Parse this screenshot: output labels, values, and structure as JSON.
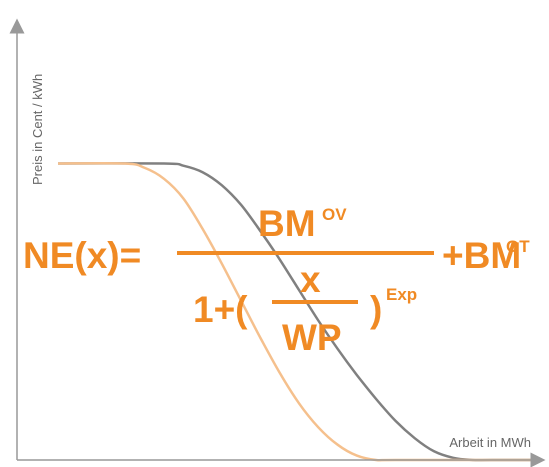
{
  "chart_data": {
    "type": "line",
    "xlabel": "Arbeit in MWh",
    "ylabel": "Preis in Cent / kWh",
    "xlim": [
      0,
      100
    ],
    "ylim": [
      0,
      100
    ],
    "grid": false,
    "series": [
      {
        "color": "#808080",
        "x": [
          0,
          22,
          26,
          30,
          34,
          38,
          42,
          46,
          50,
          54,
          58,
          62,
          66,
          70,
          74,
          78,
          82,
          86,
          90,
          100
        ],
        "y": [
          68,
          68,
          67.5,
          66,
          63,
          58.5,
          52.5,
          46,
          39,
          32,
          25.5,
          19.5,
          14,
          9,
          5,
          2,
          0.5,
          0,
          0,
          0
        ]
      },
      {
        "color": "#f5c08d",
        "x": [
          0,
          14,
          18,
          22,
          26,
          30,
          34,
          38,
          42,
          46,
          50,
          54,
          58,
          62,
          66,
          70,
          100
        ],
        "y": [
          68,
          68,
          67,
          64.5,
          60,
          53,
          45,
          36.5,
          28,
          20,
          13,
          7.5,
          3.5,
          1,
          0,
          0,
          0
        ]
      }
    ]
  },
  "formula": {
    "lhs": "NE(x)=",
    "numerator": "BM",
    "numerator_sup": "OV",
    "plus_term": "+BM",
    "plus_sup": "OT",
    "denom_prefix": "1+(",
    "inner_num": "x",
    "inner_den": "WP",
    "denom_suffix": ")",
    "exp": "Exp"
  },
  "colors": {
    "axis": "#999999",
    "formula": "#f08a24"
  }
}
